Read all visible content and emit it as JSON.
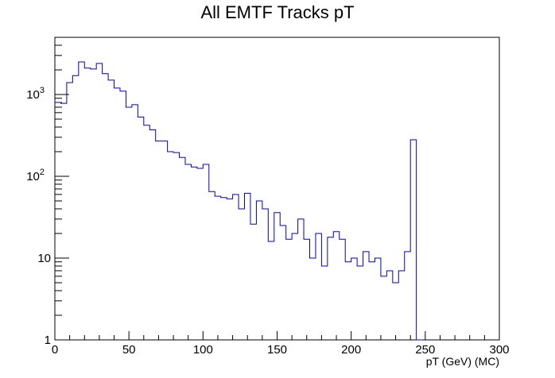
{
  "chart_data": {
    "type": "histogram",
    "title": "All EMTF Tracks pT",
    "xlabel": "pT (GeV) (MC)",
    "ylabel": "",
    "xlim": [
      0,
      300
    ],
    "ylim": [
      1,
      5000
    ],
    "yscale": "log",
    "grid": false,
    "legend": "none",
    "line_color": "#0000cc",
    "bin_width": 4,
    "bin_start": 0,
    "x_ticks": [
      {
        "value": 0,
        "label": "0"
      },
      {
        "value": 50,
        "label": "50"
      },
      {
        "value": 100,
        "label": "100"
      },
      {
        "value": 150,
        "label": "150"
      },
      {
        "value": 200,
        "label": "200"
      },
      {
        "value": 250,
        "label": "250"
      },
      {
        "value": 300,
        "label": "300"
      }
    ],
    "y_ticks": [
      {
        "value": 1,
        "base": "1",
        "exp": ""
      },
      {
        "value": 10,
        "base": "10",
        "exp": ""
      },
      {
        "value": 100,
        "base": "10",
        "exp": "2"
      },
      {
        "value": 1000,
        "base": "10",
        "exp": "3"
      }
    ],
    "values": [
      800,
      780,
      1400,
      1700,
      2500,
      2100,
      2050,
      2400,
      1800,
      1500,
      1200,
      1100,
      700,
      750,
      530,
      420,
      370,
      270,
      270,
      200,
      195,
      170,
      140,
      130,
      125,
      140,
      65,
      57,
      55,
      53,
      60,
      40,
      62,
      26,
      50,
      40,
      16,
      36,
      25,
      17,
      20,
      30,
      17,
      10,
      20,
      8,
      18,
      21,
      17,
      9,
      10,
      8,
      12,
      9,
      10,
      6,
      7,
      5,
      7,
      12,
      280,
      1
    ]
  }
}
